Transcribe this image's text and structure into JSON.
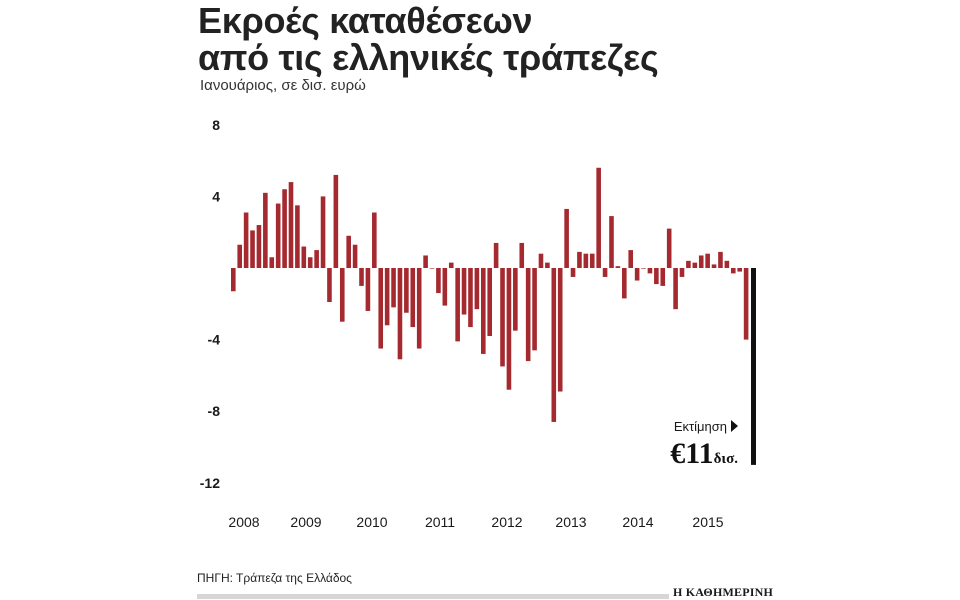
{
  "title_line1": "Εκροές καταθέσεων",
  "title_line2": "από τις ελληνικές τράπεζες",
  "subtitle": "Ιανουάριος, σε δισ. ευρώ",
  "source": "ΠΗΓΗ: Τράπεζα της Ελλάδος",
  "brand": "Η ΚΑΘΗΜΕΡΙΝΗ",
  "estimate": {
    "label": "Εκτίμηση",
    "amount": "€11",
    "unit": "δισ."
  },
  "colors": {
    "bar": "#a52a30",
    "estimate_bar": "#111111"
  },
  "chart_data": {
    "type": "bar",
    "title": "Εκροές καταθέσεων από τις ελληνικές τράπεζες",
    "ylim": [
      -12,
      8
    ],
    "yticks": [
      8,
      4,
      -4,
      -8,
      -12
    ],
    "ytick_labels": [
      "8",
      "4",
      "-4",
      "-8",
      "-12"
    ],
    "x_labels": [
      "2008",
      "2009",
      "2010",
      "2011",
      "2012",
      "2013",
      "2014",
      "2015"
    ],
    "grid": false,
    "values": [
      -1.3,
      1.3,
      3.1,
      2.1,
      2.4,
      4.2,
      0.6,
      3.6,
      4.4,
      4.8,
      3.5,
      1.2,
      0.6,
      1.0,
      4.0,
      -1.9,
      5.2,
      -3.0,
      1.8,
      1.3,
      -1.0,
      -2.4,
      3.1,
      -4.5,
      -3.2,
      -2.2,
      -5.1,
      -2.5,
      -3.3,
      -4.5,
      0.7,
      0.0,
      -1.4,
      -2.1,
      0.3,
      -4.1,
      -2.6,
      -3.3,
      -2.3,
      -4.8,
      -3.8,
      1.4,
      -5.5,
      -6.8,
      -3.5,
      1.4,
      -5.2,
      -4.6,
      0.8,
      0.3,
      -8.6,
      -6.9,
      3.3,
      -0.5,
      0.9,
      0.8,
      0.8,
      5.6,
      -0.5,
      2.9,
      0.1,
      -1.7,
      1.0,
      -0.7,
      0.0,
      -0.3,
      -0.9,
      -1.0,
      2.2,
      -2.3,
      -0.5,
      0.4,
      0.3,
      0.7,
      0.8,
      0.2,
      0.9,
      0.4,
      -0.3,
      -0.2,
      -4.0
    ],
    "estimate_value": -11.0
  }
}
